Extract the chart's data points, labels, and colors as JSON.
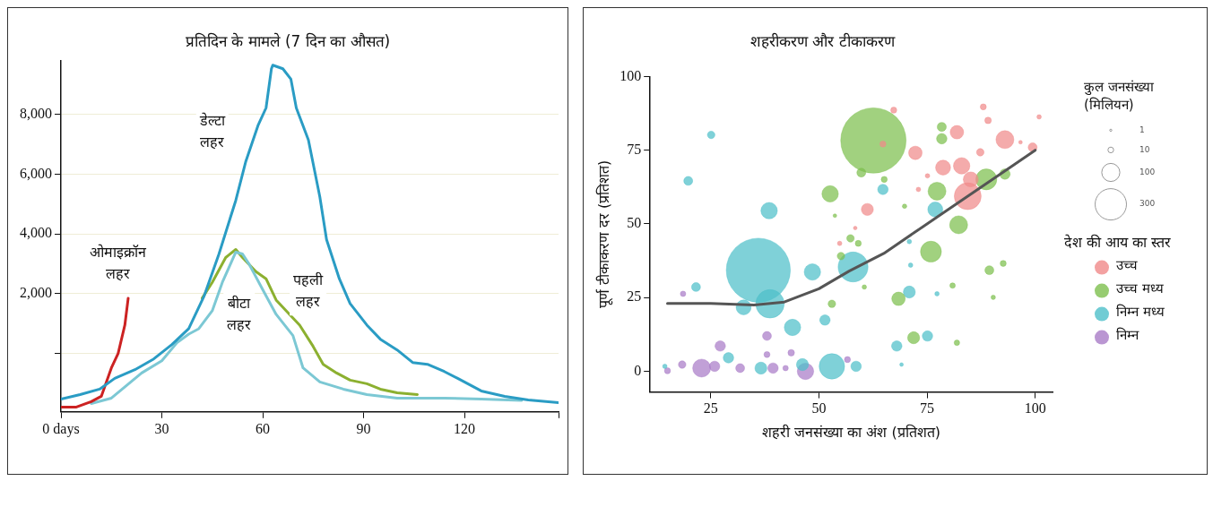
{
  "chart_data": [
    {
      "type": "line",
      "title": "प्रतिदिन के मामले (7 दिन का औसत)",
      "xlim": [
        0,
        148
      ],
      "xticks": [
        {
          "value": 0,
          "label": "0 days"
        },
        30,
        60,
        90,
        120,
        {
          "value": 148,
          "label": null
        }
      ],
      "ylim": [
        -1950,
        9800
      ],
      "yticks": [
        {
          "value": 0,
          "label": null
        },
        {
          "value": 2000,
          "label": "2,000"
        },
        {
          "value": 4000,
          "label": "4,000"
        },
        {
          "value": 6000,
          "label": "6,000"
        },
        {
          "value": 8000,
          "label": "8,000"
        }
      ],
      "grid": "y",
      "legend": false,
      "marker": "none",
      "line_style": "solid",
      "series": [
        {
          "name": "डेल्टा लहर",
          "color": "#2a9cc4",
          "x": [
            0,
            5.7,
            11.5,
            16,
            22,
            27.6,
            33,
            38,
            42.5,
            47,
            52,
            55,
            58.6,
            61,
            62.6,
            63,
            66,
            68.4,
            70,
            73.6,
            77,
            79,
            82.8,
            86,
            91,
            95,
            100,
            104.6,
            109,
            114,
            118,
            125,
            132,
            139,
            148
          ],
          "values": [
            -1520,
            -1370,
            -1190,
            -830,
            -540,
            -180,
            300,
            830,
            1900,
            3330,
            5120,
            6430,
            7620,
            8210,
            9520,
            9640,
            9520,
            9170,
            8210,
            7140,
            5240,
            3810,
            2500,
            1670,
            950,
            480,
            120,
            -300,
            -360,
            -600,
            -830,
            -1250,
            -1430,
            -1550,
            -1640
          ]
        },
        {
          "name": "ओमाइक्रॉन लहर",
          "color": "#cc2222",
          "x": [
            0,
            4.6,
            9,
            12,
            15,
            17,
            19,
            20
          ],
          "values": [
            -1790,
            -1790,
            -1610,
            -1430,
            -480,
            0,
            950,
            1850
          ]
        },
        {
          "name": "बीटा लहर",
          "color": "#7cc8d4",
          "x": [
            9,
            15,
            19.5,
            24,
            30,
            34.5,
            38,
            41,
            45,
            48,
            52,
            54,
            56,
            60,
            64,
            69,
            72,
            77,
            84,
            91,
            100,
            114,
            125,
            137
          ],
          "values": [
            -1670,
            -1490,
            -1070,
            -650,
            -240,
            360,
            650,
            830,
            1430,
            2380,
            3390,
            3330,
            2980,
            2140,
            1310,
            600,
            -480,
            -950,
            -1190,
            -1370,
            -1490,
            -1490,
            -1520,
            -1570
          ]
        },
        {
          "name": "पहली लहर",
          "color": "#8cb030",
          "x": [
            42,
            45,
            49,
            52,
            54,
            58,
            61,
            64,
            68,
            71,
            75,
            78,
            82,
            86,
            91,
            95,
            100,
            106
          ],
          "values": [
            1850,
            2380,
            3210,
            3480,
            3210,
            2740,
            2500,
            1790,
            1310,
            950,
            240,
            -360,
            -650,
            -890,
            -1010,
            -1190,
            -1310,
            -1370
          ]
        }
      ]
    },
    {
      "type": "bubble",
      "title": "शहरीकरण और टीकाकरण",
      "xlabel": "शहरी जनसंख्या का अंश (प्रतिशत)",
      "ylabel": "पूर्ण टीकाकरण दर (प्रतिशत)",
      "xlim": [
        11,
        104
      ],
      "xticks": [
        25,
        50,
        75,
        100
      ],
      "ylim": [
        -7,
        100
      ],
      "yticks": [
        0,
        25,
        50,
        75,
        100
      ],
      "legend": "right",
      "legend_title": "देश की आय का स्तर",
      "size_legend": [
        1,
        10,
        100,
        300
      ],
      "annotations": [
        "कुल जनसंख्या (मिलियन)"
      ],
      "series": [
        {
          "name": "उच्च",
          "color": "#f08a8a",
          "x": [
            72.3,
            81.9,
            93,
            78.7,
            83,
            84.4,
            85.1,
            61.2,
            88,
            89.1,
            87.3,
            100.9,
            99.4,
            67.3,
            64.8,
            75.1,
            73,
            54.8,
            58.4,
            96.6
          ],
          "values": [
            74.1,
            81.1,
            78.6,
            69.1,
            69.7,
            59.4,
            65.1,
            54.9,
            89.7,
            85.1,
            74.3,
            86.3,
            76,
            88.6,
            77.1,
            66.3,
            61.7,
            43.4,
            48.6,
            77.7
          ],
          "sizes": [
            55,
            55,
            98,
            68,
            82,
            220,
            68,
            44,
            11,
            13,
            17,
            6,
            24,
            11,
            11,
            6,
            6,
            6,
            4,
            4
          ]
        },
        {
          "name": "उच्च मध्य",
          "color": "#7dbf4e",
          "x": [
            62.6,
            52.6,
            78.4,
            78.4,
            77.3,
            88.7,
            82.3,
            75.9,
            68.4,
            71.9,
            89.4,
            92.6,
            93,
            57.3,
            59.1,
            55.1,
            53,
            59.8,
            65.1,
            80.9,
            90.3,
            81.9,
            69.8,
            60.5,
            53.7
          ],
          "values": [
            78.3,
            60.2,
            82.9,
            78.9,
            61.1,
            65.1,
            49.7,
            40.6,
            24.6,
            11.4,
            34.3,
            36.6,
            66.9,
            45.1,
            43.4,
            39.1,
            22.9,
            67.4,
            65.1,
            29.1,
            25.1,
            9.7,
            56,
            28.6,
            52.8
          ],
          "sizes": [
            1300,
            82,
            25,
            33,
            98,
            133,
            98,
            133,
            55,
            44,
            24,
            11,
            33,
            17,
            11,
            17,
            17,
            24,
            11,
            9,
            6,
            9,
            6,
            6,
            4
          ]
        },
        {
          "name": "निम्न मध्य",
          "color": "#4dbfc9",
          "x": [
            36,
            38.7,
            57.9,
            53,
            38.5,
            48.5,
            43.9,
            32.6,
            76.9,
            64.8,
            25.1,
            19.8,
            21.6,
            29.1,
            51.4,
            70.9,
            68,
            75.1,
            36.6,
            46.2,
            58.6,
            71.2,
            70.9,
            69.1,
            77.3,
            14.4
          ],
          "values": [
            34.3,
            22.9,
            35.4,
            1.7,
            54.5,
            33.7,
            14.9,
            21.7,
            54.9,
            61.7,
            80.2,
            64.6,
            28.6,
            4.6,
            17.4,
            26.9,
            8.6,
            12,
            1.1,
            2.3,
            1.7,
            36,
            44,
            2.3,
            26.3,
            1.7
          ],
          "sizes": [
            1250,
            246,
            272,
            197,
            82,
            82,
            82,
            68,
            68,
            33,
            17,
            24,
            24,
            33,
            33,
            44,
            33,
            33,
            44,
            44,
            33,
            6,
            6,
            4,
            6,
            6
          ]
        },
        {
          "name": "निम्न",
          "color": "#a97cc7",
          "x": [
            22.9,
            25.9,
            18.4,
            31.8,
            39.4,
            46.9,
            27.2,
            38,
            38,
            43.6,
            56.6,
            18.6,
            15,
            42.3
          ],
          "values": [
            1.1,
            1.7,
            2.3,
            1.1,
            1.1,
            0,
            8.6,
            12,
            5.7,
            6.3,
            4,
            26.3,
            0.2,
            1.1
          ],
          "sizes": [
            98,
            33,
            17,
            24,
            33,
            82,
            33,
            24,
            11,
            13,
            11,
            9,
            11,
            9
          ]
        },
        {
          "type": "line",
          "color": "#555555",
          "marker": "none",
          "x": [
            15,
            25,
            35,
            42,
            50,
            57,
            65,
            72,
            80,
            88,
            95,
            100
          ],
          "values": [
            23,
            23,
            22.5,
            23.5,
            28,
            34,
            40,
            47,
            55,
            63,
            70,
            75
          ]
        }
      ]
    }
  ]
}
